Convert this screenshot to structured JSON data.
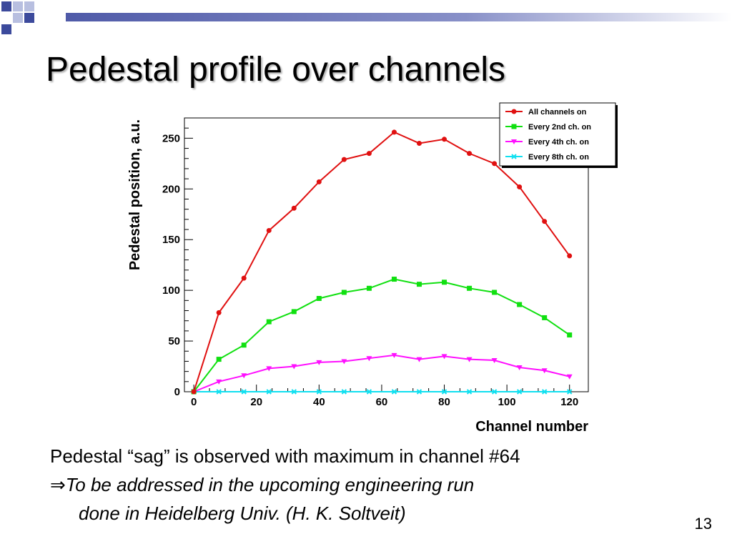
{
  "slide": {
    "title": "Pedestal profile over channels",
    "body_line1": "Pedestal “sag” is observed with maximum in channel #64",
    "arrow": "⇒",
    "body_line2": "To be addressed in the upcoming engineering run",
    "body_line3": "done in Heidelberg Univ. (H. K. Soltveit)",
    "page_number": "13"
  },
  "colors": {
    "title_bar": "#4f5aa8",
    "decor_dark": "#3c4a9c",
    "decor_light": "#b8bfe0"
  },
  "chart_data": {
    "type": "line",
    "title": "",
    "xlabel": "Channel number",
    "ylabel": "Pedestal position, a.u.",
    "xlim": [
      -3,
      126
    ],
    "ylim": [
      0,
      270
    ],
    "xticks": [
      0,
      20,
      40,
      60,
      80,
      100,
      120
    ],
    "yticks": [
      0,
      50,
      100,
      150,
      200,
      250
    ],
    "grid": false,
    "legend_position": "top-right",
    "x": [
      0,
      8,
      16,
      24,
      32,
      40,
      48,
      56,
      64,
      72,
      80,
      88,
      96,
      104,
      112,
      120
    ],
    "series": [
      {
        "name": "All channels on",
        "color": "#e01010",
        "marker": "circle",
        "values": [
          0,
          78,
          112,
          159,
          181,
          207,
          229,
          235,
          256,
          245,
          249,
          235,
          225,
          202,
          168,
          134
        ]
      },
      {
        "name": "Every 2nd ch. on",
        "color": "#10e010",
        "marker": "square",
        "values": [
          0,
          32,
          46,
          69,
          79,
          92,
          98,
          102,
          111,
          106,
          108,
          102,
          98,
          86,
          73,
          56
        ]
      },
      {
        "name": "Every 4th ch. on",
        "color": "#ff10ff",
        "marker": "triangle-down",
        "values": [
          0,
          10,
          16,
          23,
          25,
          29,
          30,
          33,
          36,
          32,
          35,
          32,
          31,
          24,
          21,
          15
        ]
      },
      {
        "name": "Every 8th ch. on",
        "color": "#10e0f0",
        "marker": "x",
        "values": [
          0,
          0,
          0,
          0,
          0,
          0,
          0,
          0,
          0,
          0,
          0,
          0,
          0,
          0,
          0,
          0
        ]
      }
    ]
  }
}
